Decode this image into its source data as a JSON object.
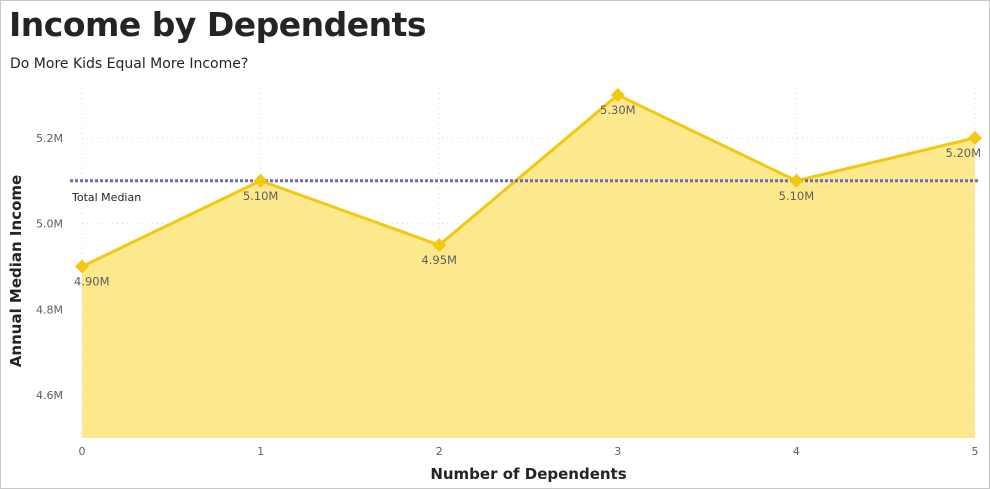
{
  "chart_data": {
    "type": "area",
    "title": "Income by Dependents",
    "subtitle": "Do More Kids Equal More Income?",
    "xlabel": "Number of Dependents",
    "ylabel": "Annual Median Income",
    "x": [
      0,
      1,
      2,
      3,
      4,
      5
    ],
    "x_tick_labels": [
      "0",
      "1",
      "2",
      "3",
      "4",
      "5"
    ],
    "values": [
      4.9,
      5.1,
      4.95,
      5.3,
      5.1,
      5.2
    ],
    "data_labels": [
      "4.90M",
      "5.10M",
      "4.95M",
      "5.30M",
      "5.10M",
      "5.20M"
    ],
    "y_ticks": [
      4.6,
      4.8,
      5.0,
      5.2
    ],
    "y_tick_labels": [
      "4.6M",
      "4.8M",
      "5.0M",
      "5.2M"
    ],
    "ylim": [
      4.5,
      5.3
    ],
    "reference_line": {
      "label": "Total Median",
      "value": 5.1,
      "color": "#6b69b8"
    },
    "colors": {
      "line": "#f2c811",
      "fill": "#fde98d",
      "marker": "#f2c811",
      "grid": "#d9d9d9"
    },
    "grid": true,
    "legend": "none"
  }
}
